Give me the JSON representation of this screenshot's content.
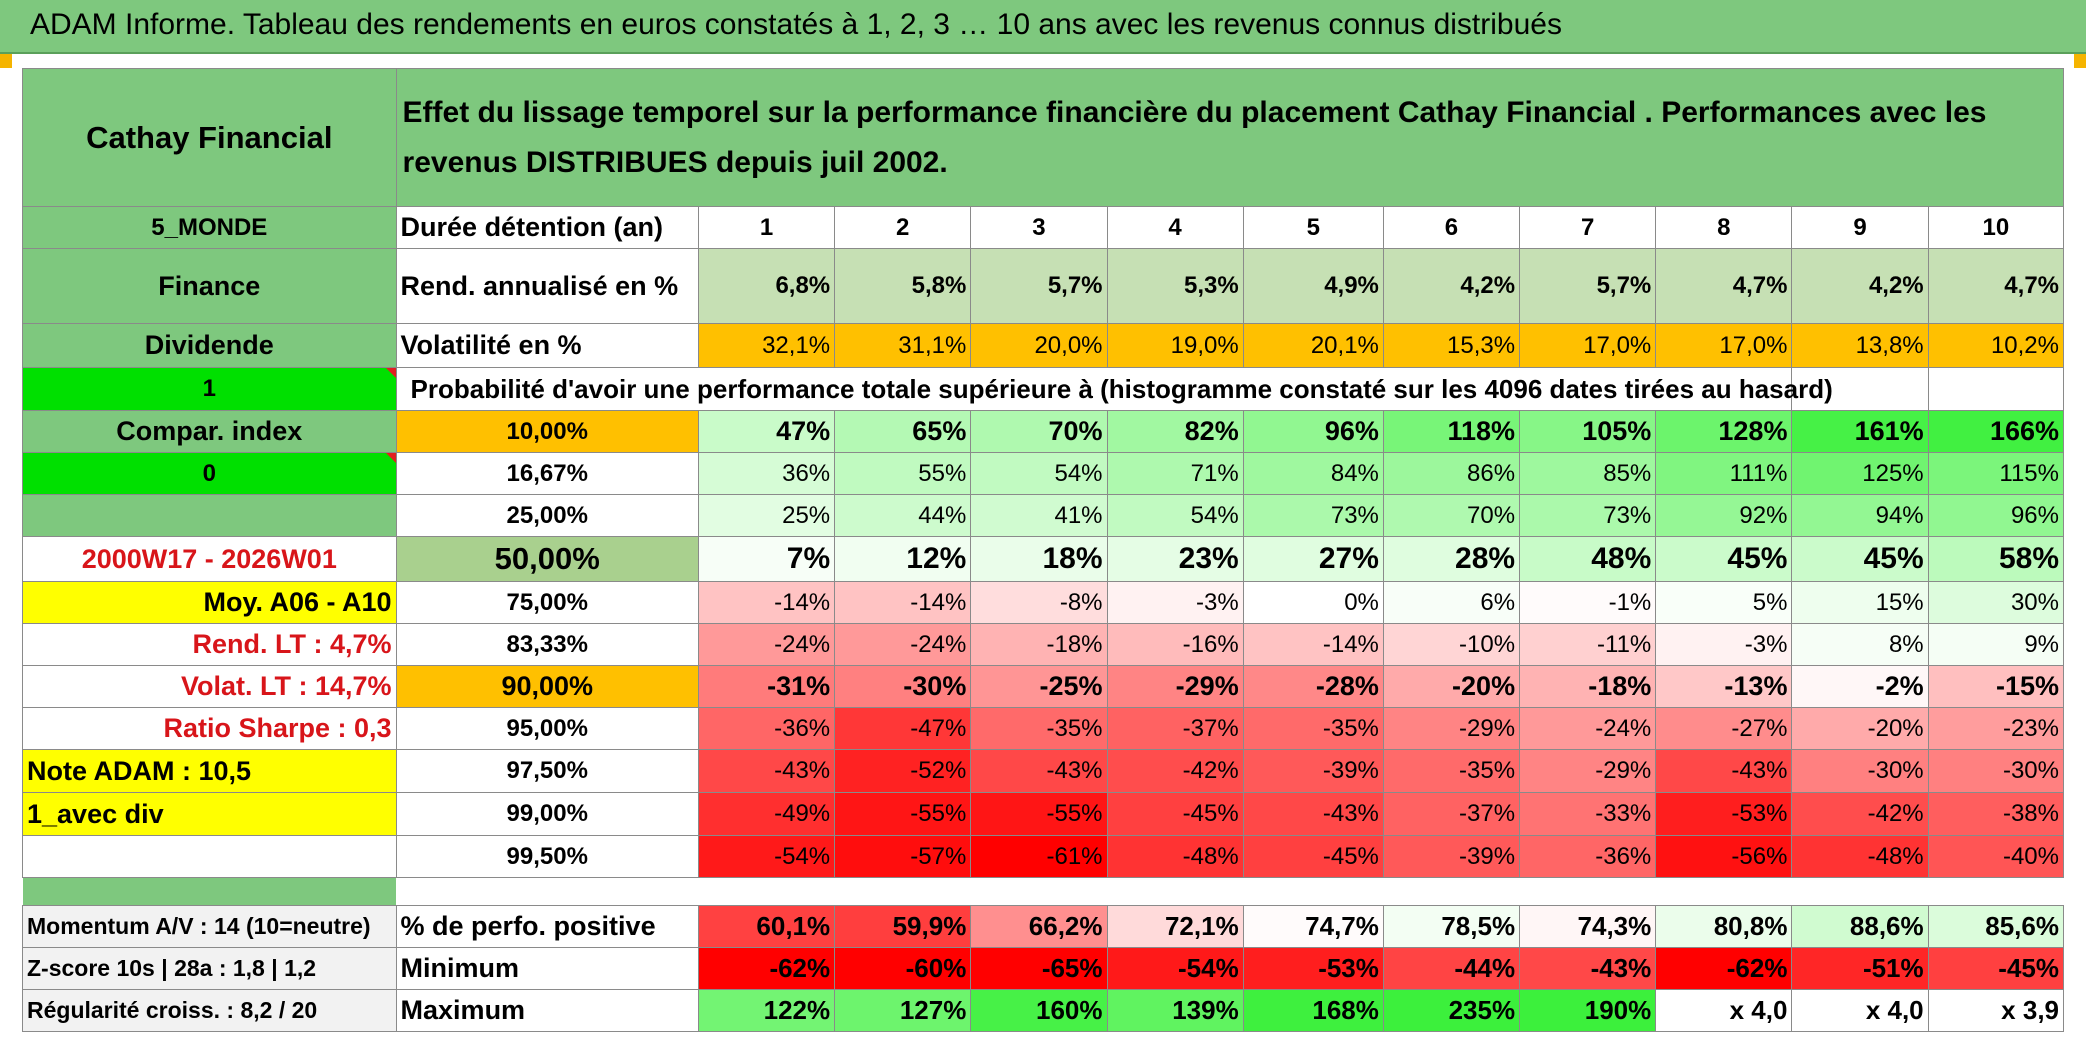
{
  "title": "ADAM Informe. Tableau des rendements en euros constatés à 1, 2, 3 … 10 ans avec les revenus connus distribués",
  "header": {
    "asset": "Cathay Financial",
    "description": "Effet du lissage temporel sur la performance financière du placement Cathay Financial . Performances avec les revenus DISTRIBUES depuis juil 2002."
  },
  "sidebar": {
    "zone": "5_MONDE",
    "sector": "Finance",
    "type": "Dividende",
    "flag1": "1",
    "compar_index": "Compar. index",
    "flag0": "0",
    "period": "2000W17 - 2026W01",
    "moy": "Moy. A06 - A10",
    "rend_lt": "Rend. LT :   4,7%",
    "volat_lt": "Volat. LT :   14,7%",
    "sharpe": "Ratio Sharpe :   0,3",
    "note": "Note ADAM : 10,5",
    "mode": "1_avec div"
  },
  "years_label": "Durée détention (an)",
  "years": [
    "1",
    "2",
    "3",
    "4",
    "5",
    "6",
    "7",
    "8",
    "9",
    "10"
  ],
  "rend_label": "Rend. annualisé en %",
  "rend": [
    "6,8%",
    "5,8%",
    "5,7%",
    "5,3%",
    "4,9%",
    "4,2%",
    "5,7%",
    "4,7%",
    "4,2%",
    "4,7%"
  ],
  "vol_label": "Volatilité en %",
  "vol": [
    "32,1%",
    "31,1%",
    "20,0%",
    "19,0%",
    "20,1%",
    "15,3%",
    "17,0%",
    "17,0%",
    "13,8%",
    "10,2%"
  ],
  "prob_label": "Probabilité d'avoir une performance totale supérieure à (histogramme constaté sur les 4096 dates tirées au hasard)",
  "quantiles": [
    {
      "p": "10,00%",
      "v": [
        "47%",
        "65%",
        "70%",
        "82%",
        "96%",
        "118%",
        "105%",
        "128%",
        "161%",
        "166%"
      ]
    },
    {
      "p": "16,67%",
      "v": [
        "36%",
        "55%",
        "54%",
        "71%",
        "84%",
        "86%",
        "85%",
        "111%",
        "125%",
        "115%"
      ]
    },
    {
      "p": "25,00%",
      "v": [
        "25%",
        "44%",
        "41%",
        "54%",
        "73%",
        "70%",
        "73%",
        "92%",
        "94%",
        "96%"
      ]
    },
    {
      "p": "50,00%",
      "v": [
        "7%",
        "12%",
        "18%",
        "23%",
        "27%",
        "28%",
        "48%",
        "45%",
        "45%",
        "58%"
      ]
    },
    {
      "p": "75,00%",
      "v": [
        "-14%",
        "-14%",
        "-8%",
        "-3%",
        "0%",
        "6%",
        "-1%",
        "5%",
        "15%",
        "30%"
      ]
    },
    {
      "p": "83,33%",
      "v": [
        "-24%",
        "-24%",
        "-18%",
        "-16%",
        "-14%",
        "-10%",
        "-11%",
        "-3%",
        "8%",
        "9%"
      ]
    },
    {
      "p": "90,00%",
      "v": [
        "-31%",
        "-30%",
        "-25%",
        "-29%",
        "-28%",
        "-20%",
        "-18%",
        "-13%",
        "-2%",
        "-15%"
      ]
    },
    {
      "p": "95,00%",
      "v": [
        "-36%",
        "-47%",
        "-35%",
        "-37%",
        "-35%",
        "-29%",
        "-24%",
        "-27%",
        "-20%",
        "-23%"
      ]
    },
    {
      "p": "97,50%",
      "v": [
        "-43%",
        "-52%",
        "-43%",
        "-42%",
        "-39%",
        "-35%",
        "-29%",
        "-43%",
        "-30%",
        "-30%"
      ]
    },
    {
      "p": "99,00%",
      "v": [
        "-49%",
        "-55%",
        "-55%",
        "-45%",
        "-43%",
        "-37%",
        "-33%",
        "-53%",
        "-42%",
        "-38%"
      ]
    },
    {
      "p": "99,50%",
      "v": [
        "-54%",
        "-57%",
        "-61%",
        "-48%",
        "-45%",
        "-39%",
        "-36%",
        "-56%",
        "-48%",
        "-40%"
      ]
    }
  ],
  "bottom": [
    {
      "left": "Momentum A/V : 14 (10=neutre)",
      "label": "% de perfo. positive",
      "v": [
        "60,1%",
        "59,9%",
        "66,2%",
        "72,1%",
        "74,7%",
        "78,5%",
        "74,3%",
        "80,8%",
        "88,6%",
        "85,6%"
      ]
    },
    {
      "left": "Z-score 10s | 28a : 1,8 | 1,2",
      "label": "Minimum",
      "v": [
        "-62%",
        "-60%",
        "-65%",
        "-54%",
        "-53%",
        "-44%",
        "-43%",
        "-62%",
        "-51%",
        "-45%"
      ]
    },
    {
      "left": "Régularité croiss. : 8,2 / 20",
      "label": "Maximum",
      "v": [
        "122%",
        "127%",
        "160%",
        "139%",
        "168%",
        "235%",
        "190%",
        "x 4,0",
        "x 4,0",
        "x 3,9"
      ]
    }
  ],
  "colors": {
    "label_green": "#7ec87e",
    "bright_green": "#00e000",
    "light_green": "#c6e0b4",
    "mid_green": "#a9d08e",
    "orange": "#ffc000",
    "yellow": "#ffff00",
    "red_text": "#d8151a"
  }
}
